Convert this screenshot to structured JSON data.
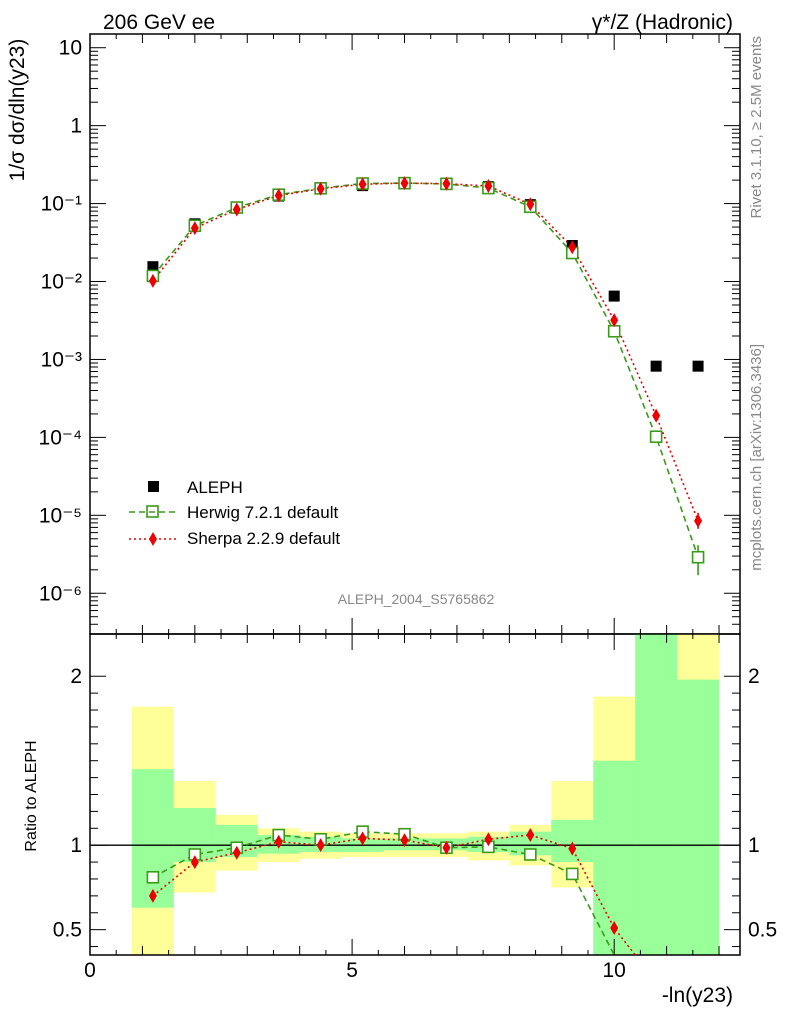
{
  "header": {
    "left": "206 GeV ee",
    "right": "γ*/Z (Hadronic)"
  },
  "side_labels": {
    "rivet": "Rivet 3.1.10, ≥ 2.5M events",
    "mcplots": "mcplots.cern.ch [arXiv:1306.3436]"
  },
  "analysis_id": "ALEPH_2004_S5765862",
  "colors": {
    "data": "#000000",
    "herwig": "#3a9a1a",
    "sherpa": "#ee0000",
    "band_inner": "#99ff99",
    "band_outer": "#ffff99"
  },
  "chart_data": [
    {
      "type": "scatter",
      "panel": "main",
      "ylabel": "1/σ dσ/dln(y23)",
      "yscale": "log",
      "ylim": [
        3e-07,
        15
      ],
      "xlim": [
        0,
        12.4
      ],
      "ytick_labels": [
        "10⁻⁶",
        "10⁻⁵",
        "10⁻⁴",
        "10⁻³",
        "10⁻²",
        "10⁻¹",
        "1",
        "10"
      ],
      "legend_position": "bottom-left",
      "series": [
        {
          "name": "ALEPH",
          "x": [
            1.2,
            2.0,
            2.8,
            3.6,
            4.4,
            5.2,
            6.0,
            6.8,
            7.6,
            8.4,
            9.2,
            10.0,
            10.8,
            11.6
          ],
          "y": [
            0.0155,
            0.055,
            0.09,
            0.125,
            0.155,
            0.17,
            0.18,
            0.183,
            0.165,
            0.097,
            0.029,
            0.0065,
            0.00082,
            0.00082
          ]
        },
        {
          "name": "Herwig 7.2.1 default",
          "x": [
            1.2,
            2.0,
            2.8,
            3.6,
            4.4,
            5.2,
            6.0,
            6.8,
            7.6,
            8.4,
            9.2,
            10.0,
            10.8,
            11.6
          ],
          "y": [
            0.0118,
            0.052,
            0.089,
            0.13,
            0.157,
            0.181,
            0.183,
            0.179,
            0.158,
            0.091,
            0.0232,
            0.0023,
            0.000102,
            2.9e-06
          ]
        },
        {
          "name": "Sherpa 2.2.9 default",
          "x": [
            1.2,
            2.0,
            2.8,
            3.6,
            4.4,
            5.2,
            6.0,
            6.8,
            7.6,
            8.4,
            9.2,
            10.0,
            10.8,
            11.6
          ],
          "y": [
            0.0102,
            0.0485,
            0.084,
            0.127,
            0.155,
            0.177,
            0.183,
            0.18,
            0.168,
            0.098,
            0.0275,
            0.0032,
            0.00019,
            8.5e-06
          ]
        }
      ]
    },
    {
      "type": "line",
      "panel": "ratio",
      "ylabel": "Ratio to ALEPH",
      "xlabel": "-ln(y23)",
      "ylim": [
        0.35,
        2.25
      ],
      "xlim": [
        0,
        12.4
      ],
      "ytick_labels": [
        "0.5",
        "1",
        "2"
      ],
      "xtick_labels": [
        "0",
        "5",
        "10"
      ],
      "reference_line": 1,
      "bands": {
        "x_edges": [
          0.8,
          1.6,
          2.4,
          3.2,
          4.0,
          4.8,
          5.6,
          6.4,
          7.2,
          8.0,
          8.8,
          9.6,
          10.4,
          11.2,
          12.0
        ],
        "inner_low": [
          0.63,
          0.9,
          0.93,
          0.95,
          0.96,
          0.96,
          0.97,
          0.97,
          0.96,
          0.94,
          0.9,
          0.35,
          0.35,
          0.35
        ],
        "inner_high": [
          1.45,
          1.22,
          1.12,
          1.06,
          1.05,
          1.04,
          1.04,
          1.04,
          1.05,
          1.08,
          1.15,
          1.5,
          2.25,
          1.98
        ],
        "outer_low": [
          0.35,
          0.72,
          0.85,
          0.9,
          0.92,
          0.93,
          0.93,
          0.93,
          0.91,
          0.88,
          0.75,
          0.35,
          0.35,
          0.35
        ],
        "outer_high": [
          1.82,
          1.38,
          1.18,
          1.1,
          1.08,
          1.07,
          1.07,
          1.07,
          1.08,
          1.12,
          1.38,
          1.88,
          2.25,
          2.25
        ]
      },
      "series": [
        {
          "name": "Herwig 7.2.1 default",
          "x": [
            1.2,
            2.0,
            2.8,
            3.6,
            4.4,
            5.2,
            6.0,
            6.8,
            7.6,
            8.4,
            9.2,
            10.0
          ],
          "y": [
            0.81,
            0.945,
            0.985,
            1.06,
            1.035,
            1.08,
            1.065,
            0.985,
            0.99,
            0.945,
            0.83,
            0.34
          ]
        },
        {
          "name": "Sherpa 2.2.9 default",
          "x": [
            1.2,
            2.0,
            2.8,
            3.6,
            4.4,
            5.2,
            6.0,
            6.8,
            7.6,
            8.4,
            9.2,
            10.0,
            10.4
          ],
          "y": [
            0.7,
            0.9,
            0.955,
            1.02,
            1.0,
            1.04,
            1.03,
            0.985,
            1.035,
            1.06,
            0.98,
            0.51,
            0.3
          ]
        }
      ]
    }
  ]
}
